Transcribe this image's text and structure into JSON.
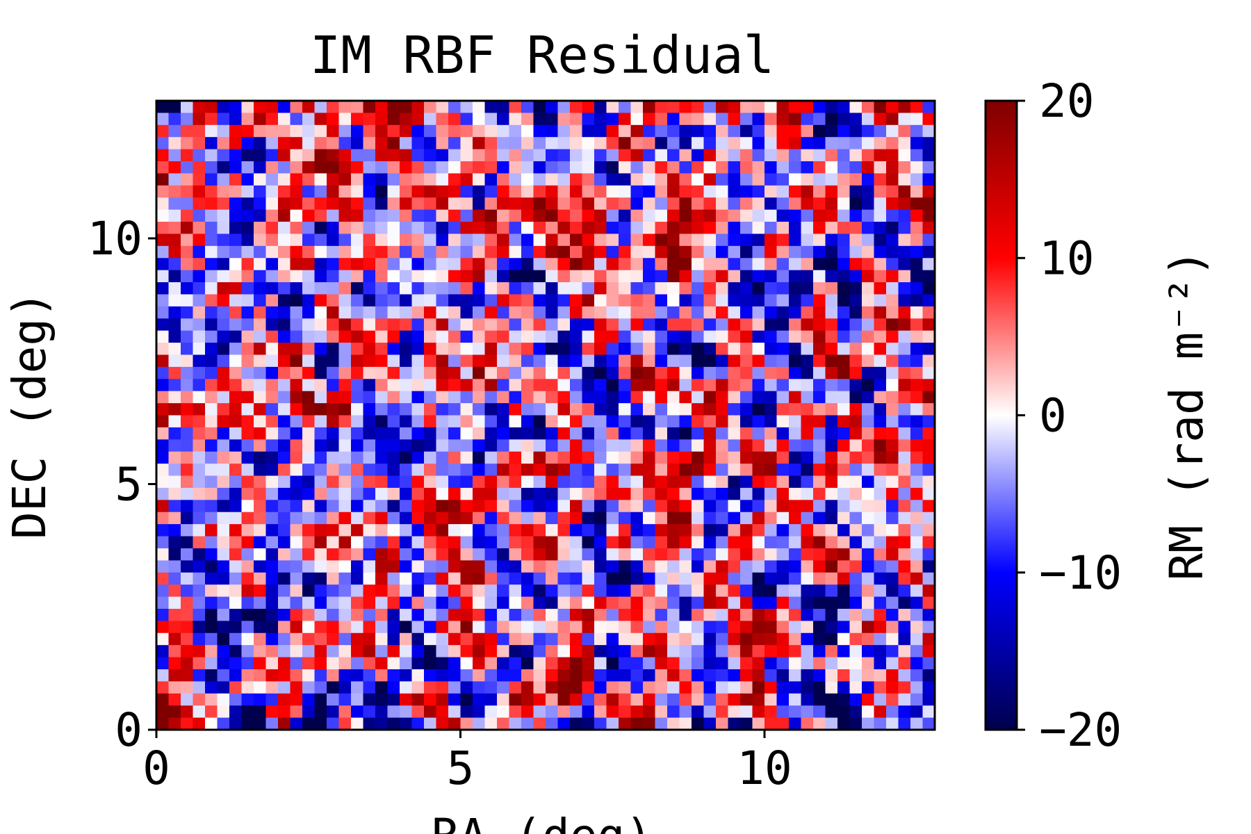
{
  "chart_data": {
    "type": "heatmap",
    "title": "IM RBF Residual",
    "xlabel": "RA (deg)",
    "ylabel": "DEC (deg)",
    "xlim": [
      0,
      12.8
    ],
    "ylim": [
      0,
      12.8
    ],
    "xticks": [
      0,
      5,
      10
    ],
    "yticks": [
      0,
      5,
      10
    ],
    "xticklabels": [
      "0",
      "5",
      "10"
    ],
    "yticklabels": [
      "0",
      "5",
      "10"
    ],
    "colorbar": {
      "label": "RM (rad m⁻²)",
      "colormap": "seismic",
      "vmin": -20,
      "vmax": 20,
      "ticks": [
        20,
        10,
        0,
        -10,
        -20
      ],
      "ticklabels": [
        "20",
        "10",
        "0",
        "−10",
        "−20"
      ],
      "colors": {
        "low": "#00004d",
        "mid_low": "#0000ff",
        "center": "#ffffff",
        "mid_high": "#ff0000",
        "high": "#800000"
      }
    },
    "grid": false
  }
}
